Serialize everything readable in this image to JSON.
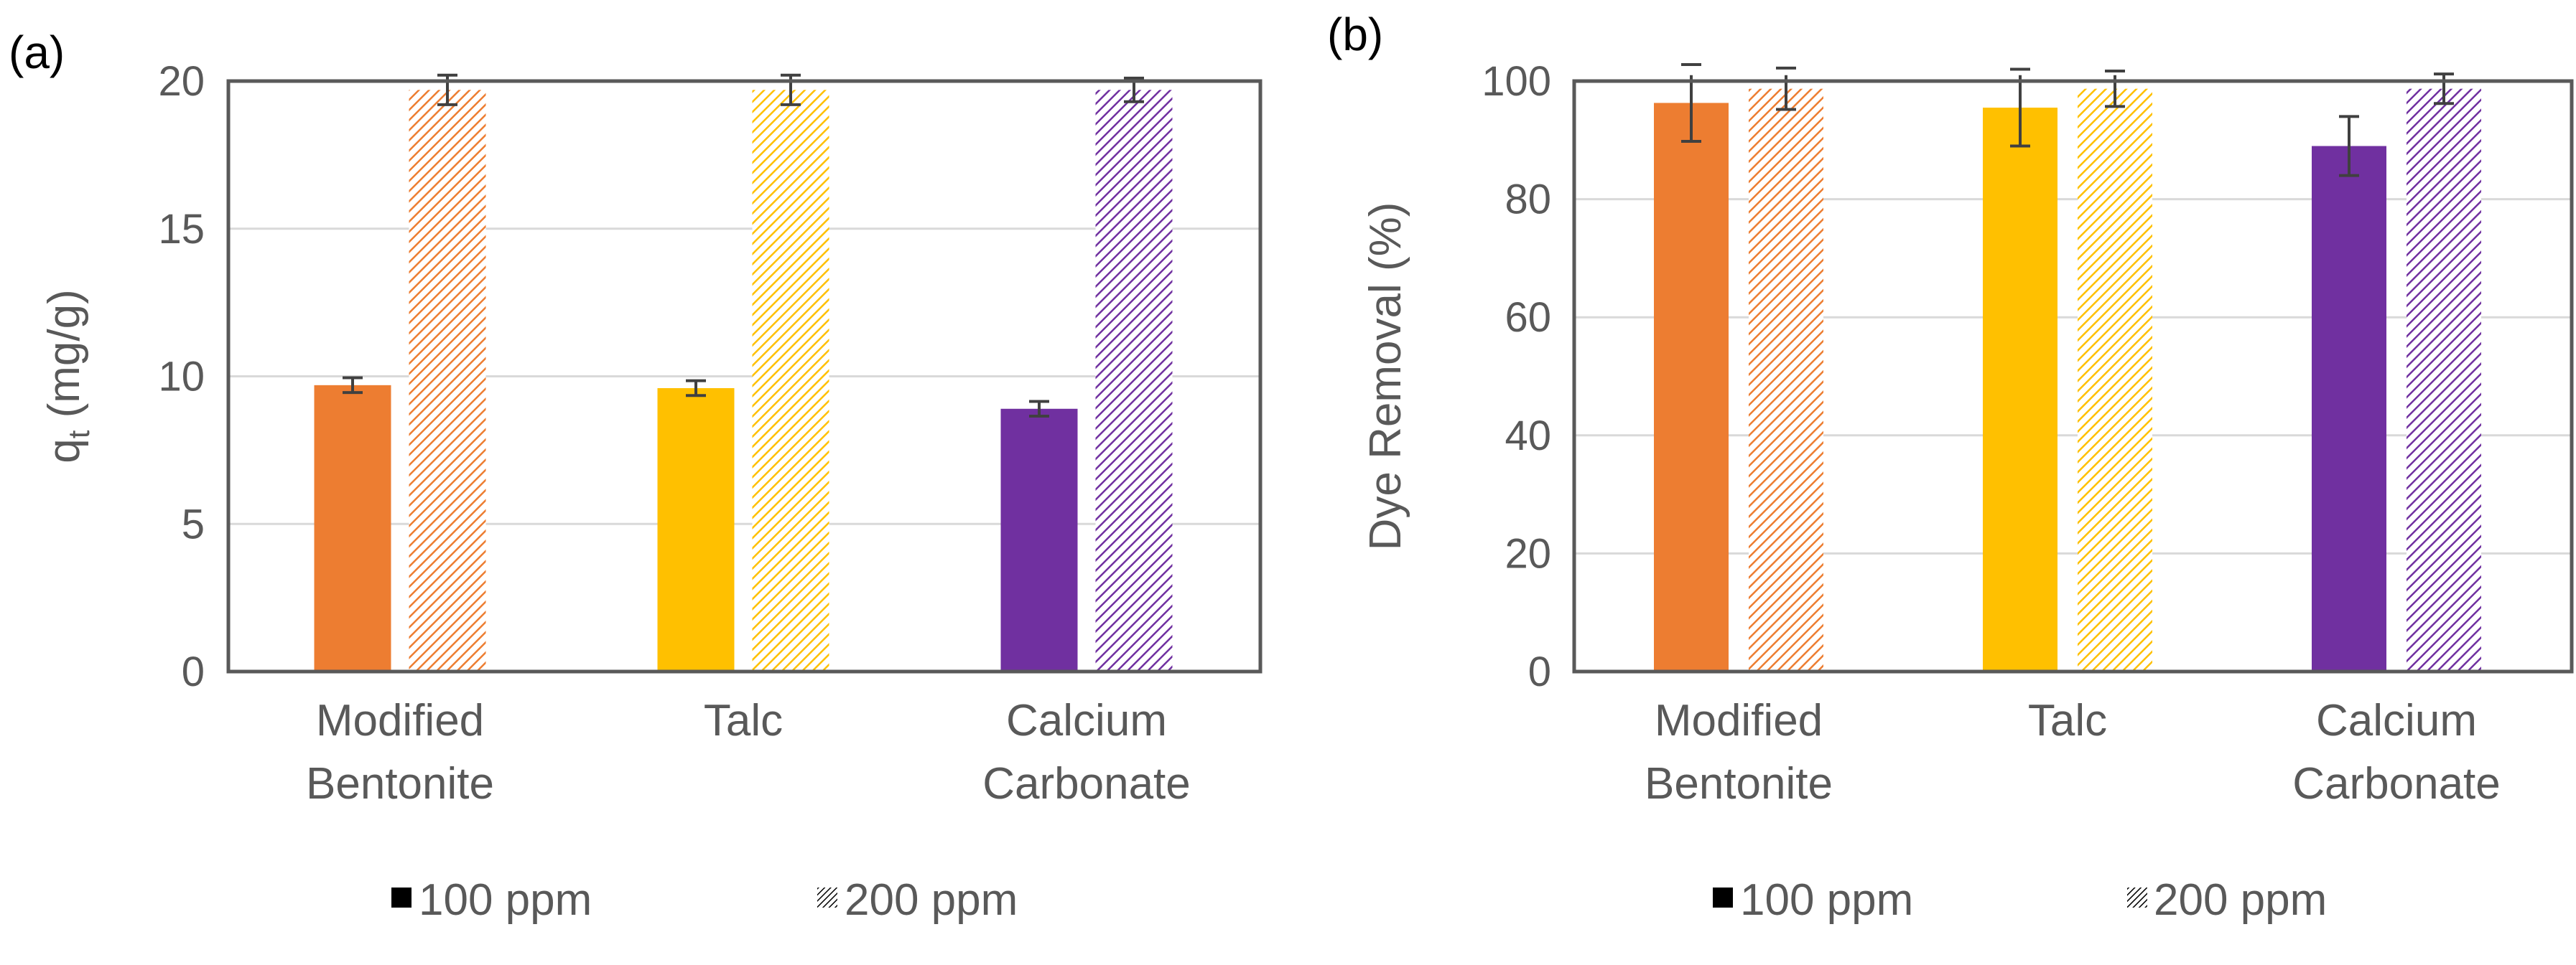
{
  "chart_data": [
    {
      "panel_label": "(a)",
      "type": "bar",
      "categories": [
        [
          "Modified",
          "Bentonite"
        ],
        [
          "Talc"
        ],
        [
          "Calcium",
          "Carbonate"
        ]
      ],
      "ylabel_main": "q",
      "ylabel_sub": "t",
      "ylabel_rest": " (mg/g)",
      "ylim": [
        0,
        20
      ],
      "yticks": [
        0,
        5,
        10,
        15,
        20
      ],
      "grid": true,
      "legend_position": "bottom",
      "series": [
        {
          "name": "100 ppm",
          "pattern": "solid",
          "values": [
            9.7,
            9.6,
            8.9
          ],
          "errors": [
            0.25,
            0.25,
            0.25
          ]
        },
        {
          "name": "200 ppm",
          "pattern": "hatched",
          "values": [
            19.7,
            19.7,
            19.7
          ],
          "errors": [
            0.5,
            0.5,
            0.4
          ]
        }
      ]
    },
    {
      "panel_label": "(b)",
      "type": "bar",
      "categories": [
        [
          "Modified",
          "Bentonite"
        ],
        [
          "Talc"
        ],
        [
          "Calcium",
          "Carbonate"
        ]
      ],
      "ylabel_main": "Dye Removal (%)",
      "ylabel_sub": "",
      "ylabel_rest": "",
      "ylim": [
        0,
        100
      ],
      "yticks": [
        0,
        20,
        40,
        60,
        80,
        100
      ],
      "grid": true,
      "legend_position": "bottom",
      "series": [
        {
          "name": "100 ppm",
          "pattern": "solid",
          "values": [
            96.3,
            95.5,
            89.0
          ],
          "errors": [
            6.5,
            6.5,
            5.0
          ]
        },
        {
          "name": "200 ppm",
          "pattern": "hatched",
          "values": [
            98.7,
            98.7,
            98.7
          ],
          "errors": [
            3.5,
            3.0,
            2.5
          ]
        }
      ]
    }
  ],
  "colors": {
    "category_colors": [
      "#ED7D31",
      "#FFC000",
      "#7030A0"
    ],
    "axis": "#595959",
    "grid": "#d9d9d9",
    "text": "#595959",
    "error_bar": "#404040",
    "legend_mark": "#000000"
  }
}
